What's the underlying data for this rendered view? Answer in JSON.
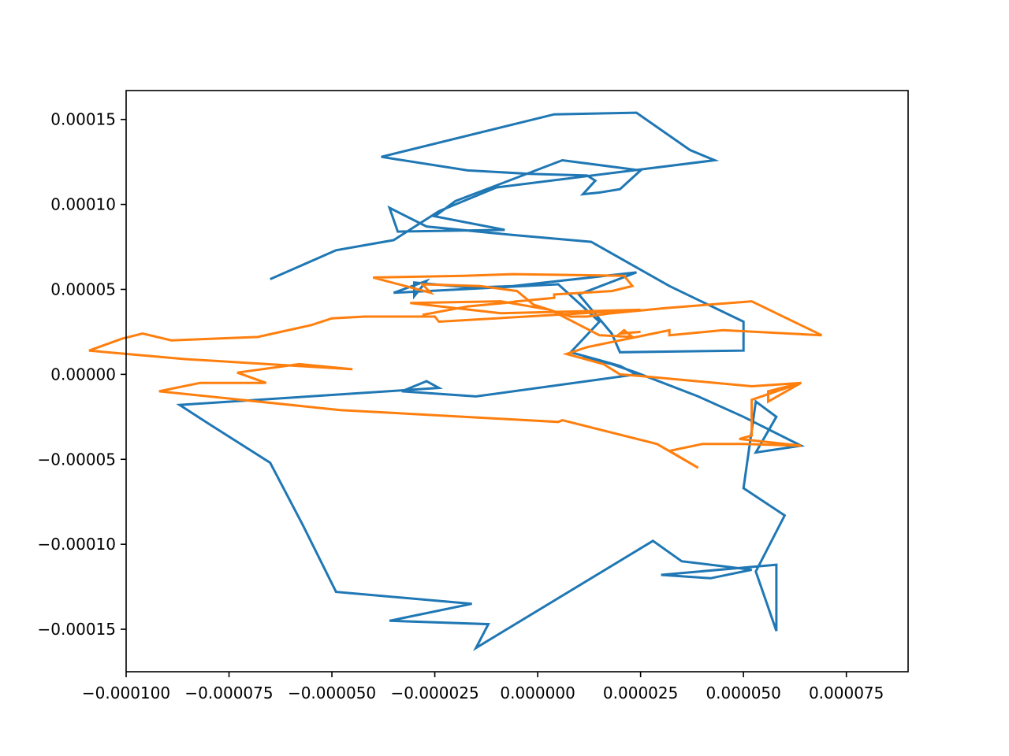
{
  "chart_data": {
    "type": "line",
    "title": "",
    "xlabel": "",
    "ylabel": "",
    "xlim": [
      -0.0001,
      9e-05
    ],
    "ylim": [
      -0.000175,
      0.000167
    ],
    "grid": false,
    "x_ticks": [
      -0.0001,
      -7.5e-05,
      -5e-05,
      -2.5e-05,
      0,
      2.5e-05,
      5e-05,
      7.5e-05
    ],
    "x_tick_labels": [
      "−0.000100",
      "−0.000075",
      "−0.000050",
      "−0.000025",
      "0.000000",
      "0.000025",
      "0.000050",
      "0.000075"
    ],
    "y_ticks": [
      0.00015,
      0.0001,
      5e-05,
      0,
      -5e-05,
      -0.0001,
      -0.00015
    ],
    "y_tick_labels": [
      "0.00015",
      "0.00010",
      "0.00005",
      "0.00000",
      "−0.00005",
      "−0.00010",
      "−0.00015"
    ],
    "series": [
      {
        "color": "#1f77b4",
        "x": [
          1.1e-05,
          1.8e-05,
          2.4e-05,
          3.9e-05,
          5e-05,
          6.4e-05,
          5.3e-05,
          5.8e-05,
          5.3e-05,
          5e-05,
          6e-05,
          5.3e-05,
          5.8e-05,
          5.8e-05,
          3e-05,
          4.2e-05,
          5.2e-05,
          3.5e-05,
          2.8e-05,
          -1.5e-05,
          -1.2e-05,
          -3.6e-05,
          -1.6e-05,
          -4.9e-05,
          -5.7e-05,
          -6.5e-05,
          -8e-05,
          -8.7e-05,
          -2.4e-05,
          -2.7e-05,
          -3.3e-05,
          -1.5e-05,
          2.4e-05,
          2e-05,
          8e-06,
          1.5e-05,
          5e-06,
          -3.5e-05,
          -2.7e-05,
          -3e-05,
          -3e-05,
          -1.6e-05,
          -6e-06,
          2.4e-05,
          1e-05,
          1.8e-05,
          2e-05,
          5e-05,
          5e-05,
          3.2e-05,
          1.3e-05,
          -6e-06,
          -2.7e-05,
          -3.6e-05,
          -3.4e-05,
          -8e-06,
          -2.5e-05,
          -2e-05,
          6e-06,
          2.5e-05,
          2e-05,
          1.5e-05,
          1.1e-05,
          1.4e-05,
          1.2e-05,
          -2e-06,
          -1.7e-05,
          -3.8e-05,
          4e-06,
          2.4e-05,
          3.7e-05,
          4.3e-05,
          -1e-05,
          -2.4e-05,
          -3.5e-05,
          -4.9e-05,
          -6.5e-05
        ],
        "y": [
          1e-05,
          6e-06,
          1e-06,
          -1.3e-05,
          -2.5e-05,
          -4.2e-05,
          -4.6e-05,
          -2.5e-05,
          -1.6e-05,
          -6.7e-05,
          -8.3e-05,
          -0.000116,
          -0.000151,
          -0.000112,
          -0.000118,
          -0.00012,
          -0.000115,
          -0.00011,
          -9.8e-05,
          -0.000161,
          -0.000147,
          -0.000145,
          -0.000135,
          -0.000128,
          -8.9e-05,
          -5.2e-05,
          -2.9e-05,
          -1.8e-05,
          -8e-06,
          -4e-06,
          -1e-05,
          -1.3e-05,
          0.0,
          5e-06,
          1.3e-05,
          3.1e-05,
          5.3e-05,
          4.8e-05,
          5.5e-05,
          4.6e-05,
          5.4e-05,
          5.1e-05,
          5.2e-05,
          6e-05,
          4.7e-05,
          2.4e-05,
          1.3e-05,
          1.4e-05,
          3.1e-05,
          5.2e-05,
          7.8e-05,
          8.2e-05,
          8.7e-05,
          9.8e-05,
          8.4e-05,
          8.5e-05,
          9.3e-05,
          0.000102,
          0.000126,
          0.00012,
          0.000109,
          0.000107,
          0.000106,
          0.000114,
          0.000117,
          0.000118,
          0.00012,
          0.000128,
          0.000153,
          0.000154,
          0.000132,
          0.000126,
          0.00011,
          9.6e-05,
          7.9e-05,
          7.3e-05,
          5.6e-05
        ]
      },
      {
        "color": "#ff7f0e",
        "x": [
          2.5e-05,
          2e-05,
          2.1e-05,
          2.3e-05,
          1.5e-05,
          3e-06,
          -9e-06,
          -3.1e-05,
          -9e-06,
          2.5e-05,
          -2.4e-05,
          -2.5e-05,
          -4.2e-05,
          -5e-05,
          -5.5e-05,
          -6.8e-05,
          -8.9e-05,
          -9.6e-05,
          -0.000101,
          -0.000109,
          -8.6e-05,
          -4.5e-05,
          -5.8e-05,
          -7.3e-05,
          -6.6e-05,
          -8.2e-05,
          -9.2e-05,
          -7.2e-05,
          -4.8e-05,
          5e-06,
          6e-06,
          2.9e-05,
          3.9e-05,
          3.2e-05,
          4e-05,
          5e-05,
          6.4e-05,
          4.9e-05,
          5.2e-05,
          5.2e-05,
          6.4e-05,
          5.6e-05,
          5.6e-05,
          6.4e-05,
          5.2e-05,
          2.5e-05,
          2e-05,
          1.6e-05,
          7e-06,
          1.2e-05,
          2.8e-05,
          3.2e-05,
          3.2e-05,
          4.5e-05,
          6.9e-05,
          5.2e-05,
          3.1e-05,
          1.8e-05,
          1.2e-05,
          8e-06,
          -1e-06,
          -5e-06,
          -1.4e-05,
          -2.8e-05,
          -2.6e-05,
          -4e-05,
          -1.8e-05,
          -6e-06,
          2.1e-05,
          2.3e-05,
          1.8e-05,
          4e-06,
          4e-06,
          -5e-06,
          -8e-06,
          -1.7e-05,
          -2.8e-05
        ],
        "y": [
          2.5e-05,
          2.4e-05,
          2.6e-05,
          2.2e-05,
          2.3e-05,
          3.8e-05,
          4.3e-05,
          4.2e-05,
          3.6e-05,
          3.8e-05,
          3.1e-05,
          3.4e-05,
          3.4e-05,
          3.3e-05,
          2.9e-05,
          2.2e-05,
          2e-05,
          2.4e-05,
          2.1e-05,
          1.4e-05,
          9e-06,
          3e-06,
          6e-06,
          1e-06,
          -5e-06,
          -5e-06,
          -1e-05,
          -1.5e-05,
          -2.1e-05,
          -2.8e-05,
          -2.7e-05,
          -4.1e-05,
          -5.5e-05,
          -4.5e-05,
          -4.1e-05,
          -4.1e-05,
          -4.2e-05,
          -3.8e-05,
          -3.6e-05,
          -1.5e-05,
          -5e-06,
          -1e-05,
          -1.6e-05,
          -5e-06,
          -7e-06,
          -1e-06,
          0.0,
          6e-06,
          1.2e-05,
          1.6e-05,
          2.4e-05,
          2.6e-05,
          2.3e-05,
          2.6e-05,
          2.3e-05,
          4.3e-05,
          3.9e-05,
          3.6e-05,
          3.4e-05,
          3.4e-05,
          4.1e-05,
          4.9e-05,
          5.2e-05,
          5.3e-05,
          4.8e-05,
          5.7e-05,
          5.8e-05,
          5.9e-05,
          5.8e-05,
          5.2e-05,
          4.9e-05,
          4.7e-05,
          4.5e-05,
          4.3e-05,
          4.2e-05,
          4e-05,
          3.5e-05
        ]
      }
    ]
  }
}
